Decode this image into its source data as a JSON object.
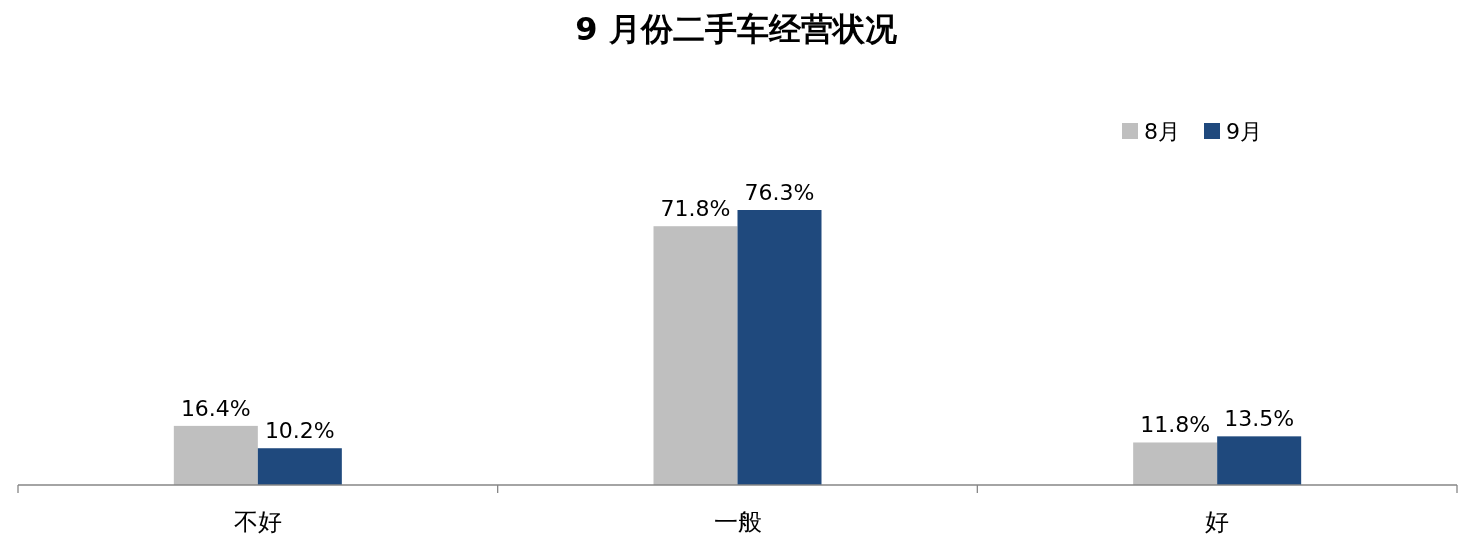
{
  "chart_data": {
    "type": "bar",
    "title": "9 月份二手车经营状况",
    "categories": [
      "不好",
      "一般",
      "好"
    ],
    "series": [
      {
        "name": "8月",
        "color": "#bfbfbf",
        "values": [
          16.4,
          71.8,
          11.8
        ],
        "value_labels": [
          "16.4%",
          "71.8%",
          "11.8%"
        ]
      },
      {
        "name": "9月",
        "color": "#1f497d",
        "values": [
          10.2,
          76.3,
          13.5
        ],
        "value_labels": [
          "10.2%",
          "76.3%",
          "13.5%"
        ]
      }
    ],
    "legend": "top right"
  }
}
